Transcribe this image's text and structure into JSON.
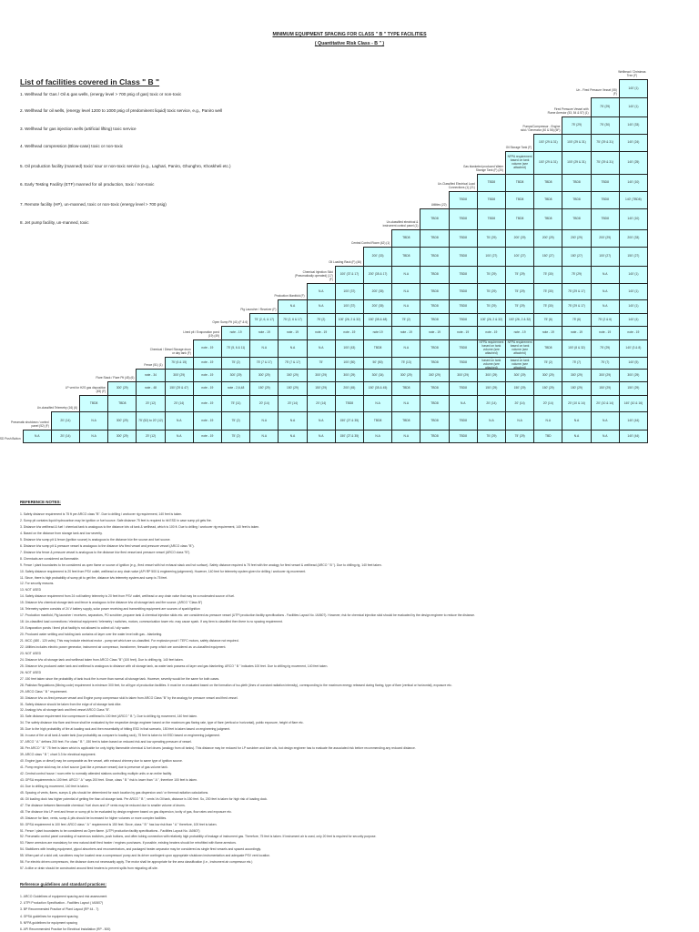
{
  "header": {
    "title": "MINIMUM EQUIPMENT SPACING FOR CLASS \" B \" TYPE FACILITIES",
    "subtitle": "( Quantitative Risk Class - B \" )"
  },
  "facilities": {
    "heading": "List of facilities covered in Class \" B \"",
    "items": [
      "1.  Wellhead for Gas / Oil & gas wells, (energy level > 700 psig of gas) toxic or non-toxic",
      "2.  Wellhead for oil wells, (energy level 1200 to 1000 psig of predominent liquid) toxic service, e.g., Paniro well",
      "3.  Wellhead for gas injection wells (artificial lifting) toxic service",
      "4.  Wellhead compression (Blow-case) toxic or non-toxic",
      "5.  Oil production facility (manned) toxic/ sour or non-toxic service (e.g., Laghari, Paniro, Ghunghro, Khoskheli etc.)",
      "6.  Early Testing Facility (ETF) manned for oil production, toxic / non-toxic",
      "7.  Remote facility (HP), un-manned, toxic or non-toxic (energy level > 700 psig)",
      "8.  Jet pump facility, un-manned, toxic"
    ]
  },
  "matrix": {
    "col_header_top": "Wellhead / Christmas Tree (F)",
    "rows": [
      {
        "label": "Un - Fired Pressure Vessel (55) (F)",
        "cells": [
          "140' (1)"
        ]
      },
      {
        "label": "Fired Pressure Vessel with Flame Arrestor (53, 54 & 57) (1)",
        "cells": [
          "75' (29)",
          "140' (1)"
        ]
      },
      {
        "label": "Pumps/Compressor - Engine skid / Generator (40 & 56) (6F)",
        "cells": [
          "75' (29)",
          "75' (30)",
          "140' (33)"
        ]
      },
      {
        "label": "Oil Storage Tank (F)",
        "cells": [
          "100' (29 & 31)",
          "100' (29 & 31)",
          "75' (29 & 31)",
          "140' (24)"
        ]
      },
      {
        "label": "Gas blanketed produced Water Storage Tank (F) (20)",
        "cells": [
          "NFPA requirement based on tank volume (see attached)",
          "100' (29 & 31)",
          "100' (29 & 31)",
          "75' (29 & 31)",
          "140' (25)"
        ]
      },
      {
        "label": "Un-Classified Electrical Load Connections (1) (21)",
        "cells": [
          "TBD8",
          "TBD8",
          "TBD8",
          "TBD8",
          "TBD8",
          "140' (10)"
        ]
      },
      {
        "label": "Utilities (22)",
        "cells": [
          "TBD8",
          "TBD8",
          "TBD8",
          "TBD8",
          "TBD8",
          "TBD8",
          "140' (TBD8)"
        ]
      },
      {
        "label": "Un-classified electrical & instrument control panel (1)",
        "cells": [
          "TBD8",
          "TBD8",
          "TBD8",
          "TBD8",
          "TBD8",
          "TBD8",
          "TBD8",
          "140' (10)"
        ]
      },
      {
        "label": "Central Control Room (42) (1)",
        "cells": [
          "TBD8",
          "TBD8",
          "TBD8",
          "75' (29)",
          "200' (29)",
          "200' (29)",
          "200' (29)",
          "200' (29)",
          "200' (33)"
        ]
      },
      {
        "label": "Oil Loading Rack (F) (46)",
        "cells": [
          "200' (33)",
          "TBD8",
          "TBD8",
          "TBD8",
          "100' (27)",
          "100' (27)",
          "150' (27)",
          "150' (27)",
          "100' (27)",
          "150' (27)"
        ]
      },
      {
        "label": "Chemical Injection Skid (Pneumatically operated) (17) (F)",
        "cells": [
          "100' (37 & 17)",
          "200' (35 & 17)",
          "N.A",
          "TBD8",
          "TBD8",
          "75' (29)",
          "75' (29)",
          "75' (30)",
          "75' (29)",
          "N.A",
          "140' (1)"
        ]
      },
      {
        "label": "Production Manifold (F)",
        "cells": [
          "N.A",
          "100' (37)",
          "200' (35)",
          "N.A",
          "TBD8",
          "TBD8",
          "75' (29)",
          "75' (29)",
          "75' (30)",
          "75' (29 & 17)",
          "N.A",
          "140' (1)"
        ]
      },
      {
        "label": "Pig Launcher / Receiver (F)",
        "cells": [
          "N.A",
          "N.A",
          "100' (37)",
          "200' (35)",
          "N.A",
          "TBD8",
          "TBD8",
          "75' (29)",
          "75' (29)",
          "75' (30)",
          "75' (29 & 17)",
          "N.A",
          "140' (1)"
        ]
      },
      {
        "label": "Open Sump Pit (41) (F & 6)",
        "cells": [
          "75' (2, 6, & 17)",
          "75' (2, 6 & 17)",
          "75' (2)",
          "100' (26, 2 & 32)",
          "150' (35 & 48)",
          "75' (2)",
          "TBD8",
          "TBD8",
          "100' (26, 2 & 32)",
          "100' (26, 2 & 32)",
          "75' (6)",
          "75' (6)",
          "75' (2 & 6)",
          "140' (4)"
        ]
      },
      {
        "label": "Lined pit / Evaporation pond (19) (49)",
        "cells": [
          "note - 19",
          "note - 19",
          "note - 19",
          "note - 19",
          "note - 19",
          "note 19",
          "note - 19",
          "note - 19",
          "note - 19",
          "note - 19",
          "note - 19",
          "note - 19",
          "note - 19",
          "note - 19",
          "note - 19"
        ]
      },
      {
        "label": "Chemical / Diesel Storage drum or day tank (F)",
        "cells": [
          "note - 19",
          "75' (5, 6 & 11)",
          "N.A",
          "N.A",
          "N.A",
          "100' (43)",
          "TBD8",
          "N.A",
          "TBD8",
          "TBD8",
          "NFPA requirement based on tank volume (see attached)",
          "NFPA requirement based on tank volume (see attached)",
          "TBD8",
          "100' (8 & 32)",
          "75' (29)",
          "140' (3 & 8)"
        ]
      },
      {
        "label": "Fence (51) (1)",
        "cells": [
          "75' (6 & 15)",
          "note - 19",
          "75' (2)",
          "75' (7 & 17)",
          "75' (7 & 17)",
          "75'",
          "100' (50)",
          "50' (50)",
          "75' (13)",
          "TBD8",
          "TBD8",
          "NFPA requirement based on tank volume (see attached)",
          "NFPA requirement based on tank volume (see attached)",
          "75' (2)",
          "75' (7)",
          "75' (7)",
          "140' (5)"
        ]
      },
      {
        "label": "Flare Stack / Flare Pit (45) (6)",
        "cells": [
          "note - 34",
          "300' (29)",
          "note - 19",
          "300' (29)",
          "300' (29)",
          "300' (29)",
          "300' (29)",
          "300' (29)",
          "300' (34)",
          "300' (29)",
          "300' (29)",
          "300' (29)",
          "300' (29)",
          "300' (29)",
          "300' (29)",
          "300' (29)",
          "300' (29)",
          "300' (29)"
        ]
      },
      {
        "label": "LP vent for H2S gas disposition (45) (F)",
        "cells": [
          "300' (29)",
          "note - 48",
          "150' (29 & 47)",
          "note - 19",
          "note - 2,6,48",
          "150' (29)",
          "150' (29)",
          "150' (29)",
          "200' (45)",
          "150' (35 & 45)",
          "TBD8",
          "TBD8",
          "TBD8",
          "150' (29)",
          "150' (29)",
          "150' (29)",
          "150' (29)",
          "150' (29)",
          "150' (29)"
        ]
      },
      {
        "label": "Un-classified Telemetry (16) (6)",
        "cells": [
          "TBD8",
          "TBD8",
          "20' (12)",
          "20' (14)",
          "note - 19",
          "75' (11)",
          "20' (14)",
          "20' (14)",
          "20' (14)",
          "TBD8",
          "N.A",
          "N.A",
          "TBD8",
          "N.A",
          "20' (14)",
          "20' (14)",
          "20' (14)",
          "20' (10 & 14)",
          "20' (10 & 14)",
          "140' (10 & 16)"
        ]
      },
      {
        "label": "Pneumatic shutdown / control panel (52) (F)",
        "cells": [
          "20' (14)",
          "N.A",
          "300' (29)",
          "75' (52) to 20' (12)",
          "N.A",
          "note - 19",
          "75' (2)",
          "N.A",
          "N.A",
          "N.A",
          "150' (27 & 35)",
          "TBD8",
          "TBD8",
          "TBD8",
          "TBD8",
          "N.A",
          "N.A",
          "N.A",
          "N.A",
          "N.A",
          "140' (44)"
        ]
      },
      {
        "label": "ESD Push Button",
        "cells": [
          "N.A",
          "20' (14)",
          "N.A",
          "300' (29)",
          "20' (12)",
          "N.A",
          "note - 19",
          "75' (2)",
          "N.A",
          "N.A",
          "N.A",
          "150' (27 & 35)",
          "N.A",
          "N.A",
          "TBD8",
          "TBD8",
          "75' (29)",
          "75' (29)",
          "TBD",
          "N.A",
          "N.A",
          "140' (44)"
        ]
      }
    ]
  },
  "notes": {
    "heading": "REFERENCE NOTES:",
    "items": [
      "1.   Safety distance requirement is 75 ft per ARCO class \"B\". Due to drilling / workover rig requirement, 140 feet is taken.",
      "2.   Sump pit contains liquid hydrocarbon may be ignition or fuel source. Safe distance 75 feet is required to hit ESD in case sump pit gets fire.",
      "3.   Distance b/w wellhead & fuel / chemical tank is analogous to the distance b/w oil tank & wellhead, which is 100 ft. Due to drilling / workover rig requirement, 140 feet is taken.",
      "4.   Based on the distance from storage tank and low severity.",
      "5.   Distance b/w sump pit & fence (ignition source) is analogous to the distance b/w fire source and fuel source.",
      "6.   Distance b/w sump pit & pressure vessel is analogous to the distance b/w fired vessel and pressure vessel (ARCO class \"B\").",
      "7.   Distance b/w fence & pressure vessel is analogous to the distance b/w fired vessel and pressure vessel (ARCO class \"B\").",
      "8.   Chemicals are considered as flammable.",
      "9.   Fence / plant boundaries to be considered as open flame or source of ignition (e.g., fired vessel with hot exhaust stack and hot surface). Safety distance required is 75 feet with the analogy for fired vessel & wellhead (ARCO \" B \"). Due to drilling rig, 140 feet taken.",
      "10.  Safety distance requirement is 20 feet from PSV outlet, wellhead or any drain valve (API RP 500 & engineering judgement). However, 140 feet for telemetry system given for drilling / workover rig movement.",
      "11.  Since, there is high probability of sump pit to get fire, distance b/w telemetry system and sump is 75 feet.",
      "12.  For security reasons.",
      "13.  NOT USED",
      "14.  Safety distance requirement from 24 volt battery telemetry is 20 feet from PSV outlet, wellhead or any drain valve that may be a moderated source of fuel.",
      "15.  Distance b/w chemical storage tank and fence is analogous to the distance b/w oil storage tank and fire source. (ARCO \"Class B\")",
      "16.  Telemetry system consists of 24 V battery supply, solar power receiving and transmitting equipment are sources of spark/ignition",
      "17.  Production manifold, Pig launcher / receivers, separators, PO scrubber, propane tank & chemical injection skids etc. are considered as pressure vessel (UTPI production facility specifications - Facilities Layout No. IA0607). However, risk for chemical injection skid should be evaluated by the design engineer to reduce the distance.",
      "18.  Un-classified load connections / electrical equipment / telemetry / switches, motors, communication tower etc. may cause spark. If any item is classified then there is no spacing requirement.",
      "19.  Evaporation ponds / lined pit at facility is not allowed to collect oil / oily water.",
      "20.  Produced water settling and holding tank contains oil layer over the water level with gas - blanketing.",
      "21.  MCC (480 - 120 volts). This may include electrical motor - pump set which are un-classified. For explosion proof / TEFC motors, safety distance not required.",
      "22.  Utilities includes electric power generator, instrument air compressor, transformer, firewater pump which are considered as un-classified equipment.",
      "23.  NOT USED",
      "24.  Distance b/w oil storage tank and wellhead taken from ARCO Class \"B\" (100 feet). Due to drilling rig, 140 feet taken.",
      "25.  Distance b/w produced water tank and wellhead is analogous to distance with oil storage tank, as water tank possess oil layer and gas blanketing. ARCO \" B \" indicates 100 feet. Due to drilling rig movement, 140 feet taken.",
      "26.  NOT USED",
      "27.  150 feet taken since the probability of tank truck fire is more than normal oil storage tank. However, severity would be the same for both cases.",
      "28.  Pakistan Regulations (Mining code) requirement is minimum 300 feet, for all type of production facilities. It must be re-evaluated based on the formation of iso-pleth (lines of constant radiation intensity), corresponding to the maximum energy released during flaring, type of flare (vertical or horizontal), exposure etc.",
      "29.  ARCO Class \" B \" requirement.",
      "30.  Distance b/w un-fired pressure vessel and Engine pump compressor skid is taken from ARCO Class \"B\" by the analogy for pressure vessel and fired vessel.",
      "31.  Safety distance should be taken from the edge of oil storage tank dike.",
      "32.  Analogy b/w oil storage tank and fired vessel ARCO Class \"B\".",
      "33.  Safe distance requirement b/w compressure & wellhead is 100 feet (ARCO \" B \"). Due to drilling rig movement, 140 feet taken.",
      "34.  The safety distance b/w flare and fence shall be evaluated by the respective design engineer based on the maximum gas flaring rate, type of flare (vertical or horizontal), public exposure, height of flare etc.",
      "35.  Due to the high probability of fire at loading rack and then essentiality of hitting ESD in that scenario, 150 feet is taken based on engineering judgment.",
      "36.  In case of fire at oil tank & water tank (low probability as compare to loading rack), 75 feet is taken to hit ESD based on engineering judgement.",
      "37.  ARCO \" A \" defines 200 feet. For class \" B \", 150 feet is taken based on reduced risk and low operating pressure of vessel.",
      "38.  Per ARCO \" B \" 75 feet is taken which is applicable for only highly flammable chemical & fuel drums (analogy from oil tanks). This distance may be reduced for LP scrubber and lube oils, but design engineer has to evaluate the associated risk before recommending any reduced distance.",
      "39.  ARCO class \" B \", chart 3.3 for electrical equipment.",
      "40.  Engine (gas or diesel) may be comparable as fire vessel, with exhaust chimney due to same type of ignition source.",
      "41.  Pump engine skid may be a fuel source (just like a pressure vessel) due to presence of gas-volume tank.",
      "42.  Central control house / room refer to normally attended stations controlling multiple units or an entire facility.",
      "43.  GPSA requirements is 100 feet. ARCO \" A \" says 200 feet. Since, class \" B \" risk is lower than \" A \", therefore 100 feet is taken.",
      "44.  Due to drilling rig movement, 140 feet is taken.",
      "45.  Spacing of vents, flares, sumps & pits should be determined for each location by gas dispersion and / or thermal radiation calculations.",
      "46.  Oil loading dock has higher potential of getting fire than oil storage tank. Per ARCO \" B \", vents Vs Oil tank, distance is 150 feet. So, 200 feet is taken for high risk of loading dock.",
      "47.  The distance between flammable chemical / fuel drum and LP vents may be reduced due to smaller volume of drums.",
      "48.  The distance b/w LP vent and fence or sump pit to be evaluated by design engineer based on gas dispersion, toxity of gas, flow rates and exposure etc.",
      "49.  Distance for flare, vents, sump & pits should be increased for higher volumes or more complex facilities.",
      "50.  GPSA requirement is 100 feet. ARCO class \" A \" requirement is 150 feet. Since, class \" B \" has low risk than \" A \" therefore, 100 feet is taken.",
      "51.  Fence / plant boundaries to be considered as Open flame. (UTPI production facility specifications - Facilities Layout No. IA0607)",
      "52.  Pneumatic control panel consisting of numerous switches, push buttons, and often tubing connection with relatively high probability of leakage of instrument gas. Therefore, 75 feet is taken. If instrument air is used, only 20 feet is required for security purpose.",
      "53.  Flame arrestors are mandatory for new natural draft fired heater / engines purchases. If possible, existing heaters should be retrofitted with flame arrestors.",
      "54.  Stabilizers with heating equipment, glycol absorbers and reconcentrators, and packaged heater-separator may be considered as single fired vessels and spaced accordingly.",
      "55.  When part of a skid unit, scrubbers may be located near a compressor/ pump and its driver contingent upon appropriate shutdown instrumentation and adequate PSV vent location.",
      "56.  For electric driven compressors, the distance does not necessarily apply. The motor shall be appropriate for the area classification (i.e., instrument air compressor etc.)",
      "57.  A dike or drain should be constructed around fired heaters to prevent spills from migrating off-site."
    ]
  },
  "references": {
    "heading": "Reference guidelines and standard practices:",
    "items": [
      "1.  ARCO Guidelines of equipment spacing and risk assessment",
      "2.  UTPI Production Specification - Facilities Layout ( IA0607)",
      "3.  BP Recommended Practice of Plant Layout  (RP 44 - 7)",
      "4.  GPSA guidelines for equipment spacing",
      "5.  NFPA guidelines for equipment spacing",
      "6.  API Recommended Practice for Electrical Installation (RP - 500)"
    ]
  }
}
